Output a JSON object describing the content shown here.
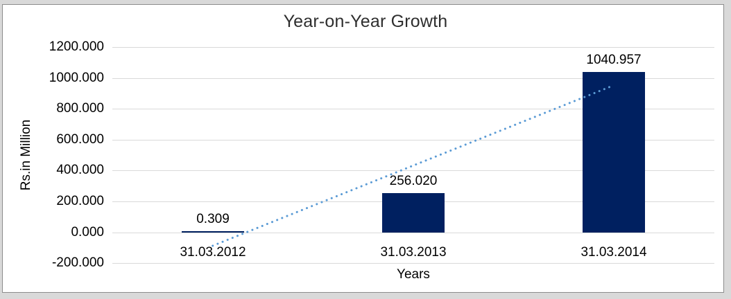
{
  "chart_data": {
    "type": "bar",
    "title": "Year-on-Year Growth",
    "categories": [
      "31.03.2012",
      "31.03.2013",
      "31.03.2014"
    ],
    "values": [
      0.309,
      256.02,
      1040.957
    ],
    "data_labels": [
      "0.309",
      "256.020",
      "1040.957"
    ],
    "xlabel": "Years",
    "ylabel": "Rs.in Million",
    "ylim": [
      -200,
      1200
    ],
    "ytick_step": 200,
    "ytick_labels": [
      "1200.000",
      "1000.000",
      "800.000",
      "600.000",
      "400.000",
      "200.000",
      "0.000",
      "-200.000"
    ],
    "grid": true,
    "legend": "none",
    "series_name": "",
    "trendline": {
      "type": "linear",
      "style": "dotted",
      "color": "#5b9bd5",
      "span": "first-to-last-category"
    },
    "colors": {
      "bar": "#002060",
      "gridline": "#d9d9d9",
      "axis_text": "#000000",
      "title_text": "#2e2e2e",
      "plot_background": "#ffffff",
      "frame_edge": "#8c8c8c",
      "outer_background": "#d9d9d9"
    }
  }
}
